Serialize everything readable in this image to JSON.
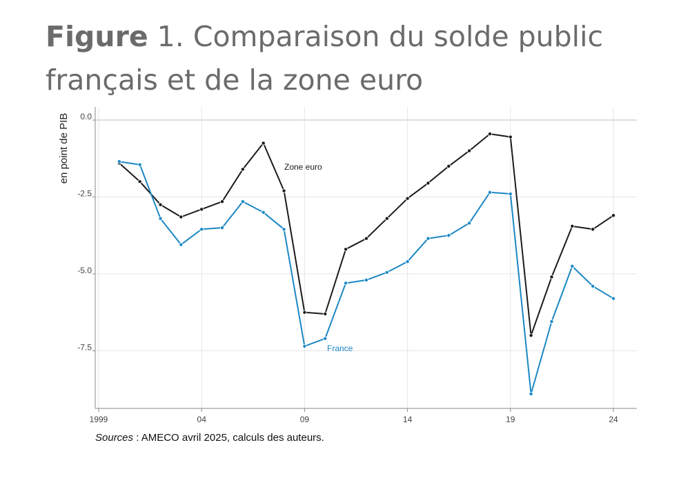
{
  "figure": {
    "lead": "Figure",
    "number": "1.",
    "title": "Comparaison du solde public français et de la zone euro"
  },
  "sources": {
    "label": "Sources",
    "text": " : AMECO avril 2025, calculs des auteurs."
  },
  "colors": {
    "zone_euro": "#1a1a1a",
    "france": "#1a87c4",
    "grid": "#e6e6e6",
    "zero": "#bdbdbd"
  },
  "chart_data": {
    "type": "line",
    "ylabel": "en point de PIB",
    "xlim": [
      1999,
      2025
    ],
    "ylim": [
      -9.3,
      0.4
    ],
    "yticks": [
      0.0,
      -2.5,
      -5.0,
      -7.5
    ],
    "ytick_labels": [
      "0.0",
      "-2.5",
      "-5.0",
      "-7.5"
    ],
    "xticks": [
      1999,
      2004,
      2009,
      2014,
      2019,
      2024
    ],
    "xtick_labels": [
      "1999",
      "04",
      "09",
      "14",
      "19",
      "24"
    ],
    "grid": true,
    "x": [
      2000,
      2001,
      2002,
      2003,
      2004,
      2005,
      2006,
      2007,
      2008,
      2009,
      2010,
      2011,
      2012,
      2013,
      2014,
      2015,
      2016,
      2017,
      2018,
      2019,
      2020,
      2021,
      2022,
      2023,
      2024
    ],
    "series": [
      {
        "name": "Zone euro",
        "color": "#1a1a1a",
        "values": [
          -1.4,
          -2.0,
          -2.75,
          -3.15,
          -2.9,
          -2.65,
          -1.6,
          -0.75,
          -2.3,
          -6.25,
          -6.3,
          -4.2,
          -3.85,
          -3.2,
          -2.55,
          -2.05,
          -1.5,
          -1.0,
          -0.45,
          -0.55,
          -7.0,
          -5.1,
          -3.45,
          -3.55,
          -3.1
        ]
      },
      {
        "name": "France",
        "color": "#1a87c4",
        "values": [
          -1.35,
          -1.45,
          -3.2,
          -4.05,
          -3.55,
          -3.5,
          -2.65,
          -3.0,
          -3.55,
          -7.35,
          -7.1,
          -5.3,
          -5.2,
          -4.95,
          -4.6,
          -3.85,
          -3.75,
          -3.35,
          -2.35,
          -2.4,
          -8.9,
          -6.55,
          -4.75,
          -5.4,
          -5.8
        ]
      }
    ]
  }
}
